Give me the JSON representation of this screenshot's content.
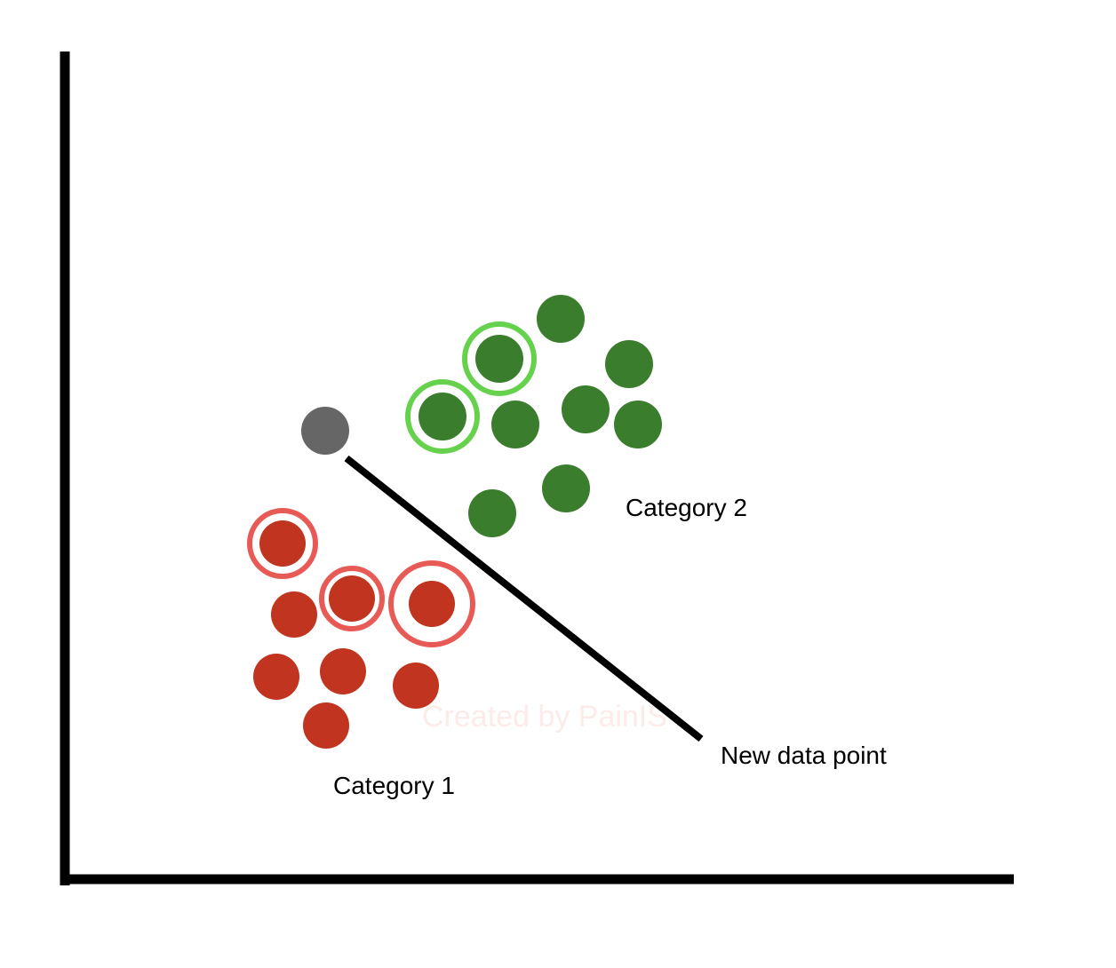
{
  "labels": {
    "category_1": "Category 1",
    "category_2": "Category 2",
    "new_point": "New data point"
  },
  "watermark": "Created by PainIS",
  "colors": {
    "axis": "#000000",
    "category_1_fill": "#c1341f",
    "category_1_ring": "#e85a55",
    "category_2_fill": "#3a7d2c",
    "category_2_ring": "#66d14d",
    "new_point_fill": "#666666",
    "pointer_line": "#000000"
  },
  "legend": {
    "category_1_highlighted_neighbors": 3,
    "category_2_highlighted_neighbors": 2
  }
}
